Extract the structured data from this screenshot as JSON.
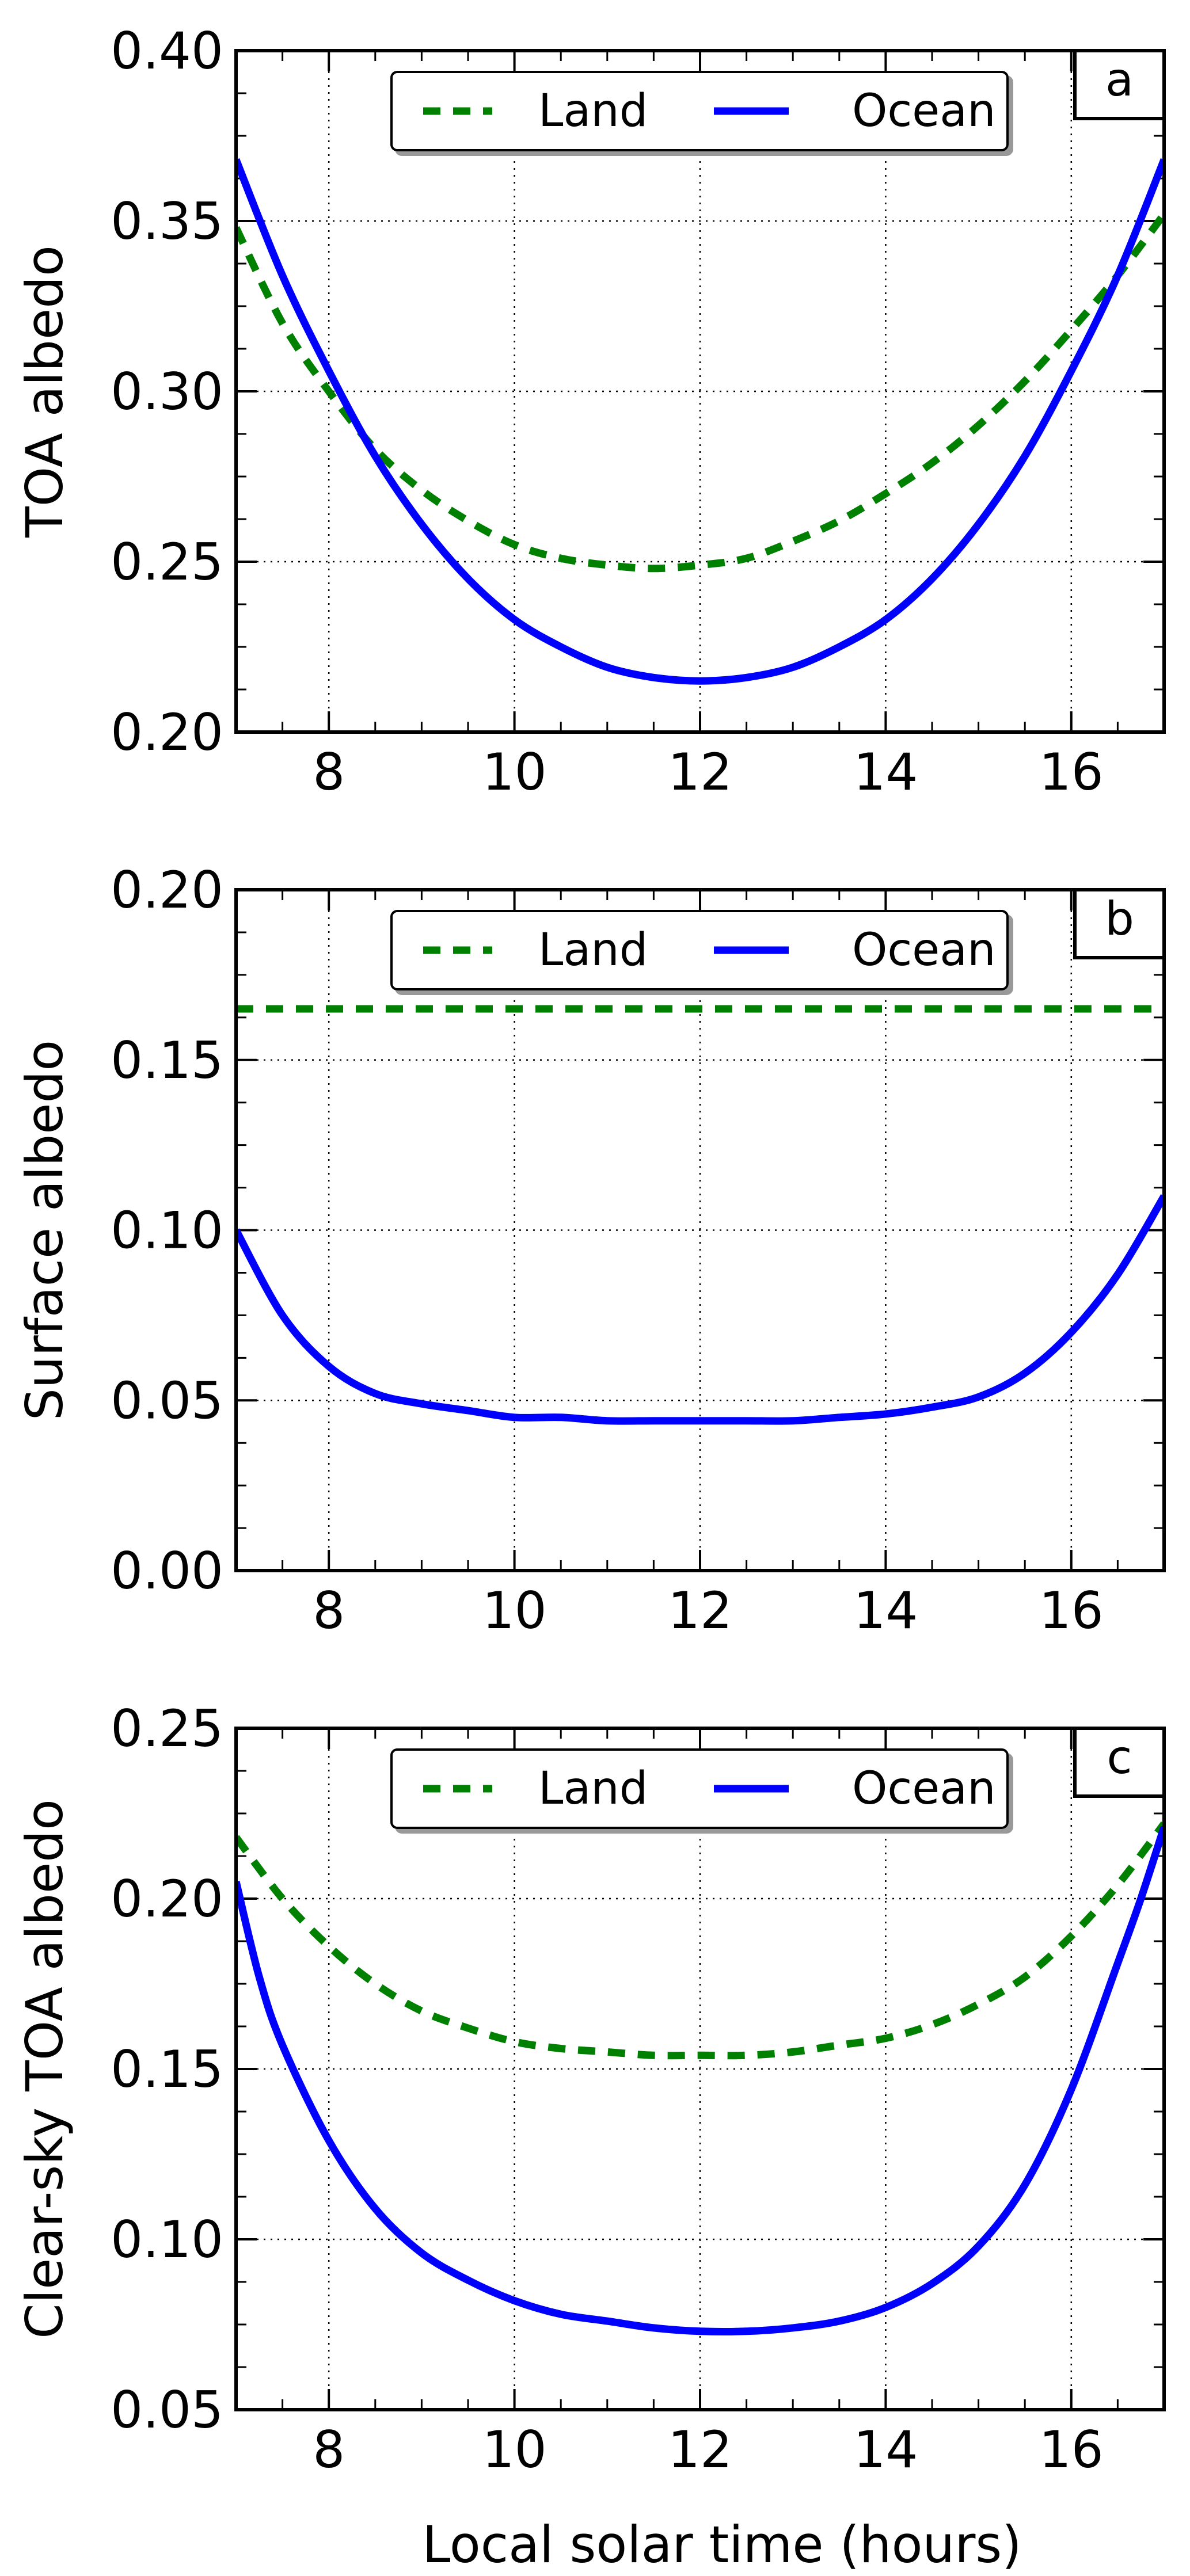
{
  "figure": {
    "xlabel": "Local solar time (hours)"
  },
  "chart_data": [
    {
      "type": "line",
      "panel_label": "a",
      "ylabel": "TOA albedo",
      "xlim": [
        7,
        17
      ],
      "ylim": [
        0.2,
        0.4
      ],
      "xticks": [
        8,
        10,
        12,
        14,
        16
      ],
      "xtick_labels": [
        "8",
        "10",
        "12",
        "14",
        "16"
      ],
      "yticks": [
        0.2,
        0.25,
        0.3,
        0.35,
        0.4
      ],
      "ytick_labels": [
        "0.20",
        "0.25",
        "0.30",
        "0.35",
        "0.40"
      ],
      "grid": true,
      "legend": {
        "placement": "top-center",
        "ncol": 2
      },
      "series": [
        {
          "name": "Land",
          "style": "dashed",
          "color": "#008000",
          "x": [
            7.0,
            7.5,
            8.0,
            8.5,
            9.0,
            9.5,
            10.0,
            10.5,
            11.0,
            11.5,
            12.0,
            12.5,
            13.0,
            13.5,
            14.0,
            14.5,
            15.0,
            15.5,
            16.0,
            16.5,
            17.0
          ],
          "y": [
            0.348,
            0.32,
            0.3,
            0.283,
            0.271,
            0.262,
            0.255,
            0.251,
            0.249,
            0.248,
            0.249,
            0.251,
            0.256,
            0.262,
            0.27,
            0.279,
            0.29,
            0.303,
            0.318,
            0.334,
            0.352
          ]
        },
        {
          "name": "Ocean",
          "style": "solid",
          "color": "#0000ff",
          "x": [
            7.0,
            7.5,
            8.0,
            8.5,
            9.0,
            9.5,
            10.0,
            10.5,
            11.0,
            11.5,
            12.0,
            12.5,
            13.0,
            13.5,
            14.0,
            14.5,
            15.0,
            15.5,
            16.0,
            16.5,
            17.0
          ],
          "y": [
            0.368,
            0.334,
            0.306,
            0.281,
            0.261,
            0.245,
            0.233,
            0.225,
            0.219,
            0.216,
            0.215,
            0.216,
            0.219,
            0.225,
            0.233,
            0.245,
            0.261,
            0.281,
            0.306,
            0.334,
            0.368
          ]
        }
      ]
    },
    {
      "type": "line",
      "panel_label": "b",
      "ylabel": "Surface albedo",
      "xlim": [
        7,
        17
      ],
      "ylim": [
        0.0,
        0.2
      ],
      "xticks": [
        8,
        10,
        12,
        14,
        16
      ],
      "xtick_labels": [
        "8",
        "10",
        "12",
        "14",
        "16"
      ],
      "yticks": [
        0.0,
        0.05,
        0.1,
        0.15,
        0.2
      ],
      "ytick_labels": [
        "0.00",
        "0.05",
        "0.10",
        "0.15",
        "0.20"
      ],
      "grid": true,
      "legend": {
        "placement": "top-center",
        "ncol": 2
      },
      "series": [
        {
          "name": "Land",
          "style": "dashed",
          "color": "#008000",
          "x": [
            7.0,
            8.0,
            9.0,
            10.0,
            11.0,
            12.0,
            13.0,
            14.0,
            15.0,
            16.0,
            17.0
          ],
          "y": [
            0.165,
            0.165,
            0.165,
            0.165,
            0.165,
            0.165,
            0.165,
            0.165,
            0.165,
            0.165,
            0.165
          ]
        },
        {
          "name": "Ocean",
          "style": "solid",
          "color": "#0000ff",
          "x": [
            7.0,
            7.5,
            8.0,
            8.5,
            9.0,
            9.5,
            10.0,
            10.5,
            11.0,
            11.5,
            12.0,
            12.5,
            13.0,
            13.5,
            14.0,
            14.5,
            15.0,
            15.5,
            16.0,
            16.5,
            17.0
          ],
          "y": [
            0.1,
            0.075,
            0.06,
            0.052,
            0.049,
            0.047,
            0.045,
            0.045,
            0.044,
            0.044,
            0.044,
            0.044,
            0.044,
            0.045,
            0.046,
            0.048,
            0.051,
            0.058,
            0.07,
            0.087,
            0.11
          ]
        }
      ]
    },
    {
      "type": "line",
      "panel_label": "c",
      "ylabel": "Clear-sky TOA albedo",
      "xlim": [
        7,
        17
      ],
      "ylim": [
        0.05,
        0.25
      ],
      "xticks": [
        8,
        10,
        12,
        14,
        16
      ],
      "xtick_labels": [
        "8",
        "10",
        "12",
        "14",
        "16"
      ],
      "yticks": [
        0.05,
        0.1,
        0.15,
        0.2,
        0.25
      ],
      "ytick_labels": [
        "0.05",
        "0.10",
        "0.15",
        "0.20",
        "0.25"
      ],
      "grid": true,
      "legend": {
        "placement": "top-center",
        "ncol": 2
      },
      "series": [
        {
          "name": "Land",
          "style": "dashed",
          "color": "#008000",
          "x": [
            7.0,
            7.5,
            8.0,
            8.5,
            9.0,
            9.5,
            10.0,
            10.5,
            11.0,
            11.5,
            12.0,
            12.5,
            13.0,
            13.5,
            14.0,
            14.5,
            15.0,
            15.5,
            16.0,
            16.5,
            17.0
          ],
          "y": [
            0.218,
            0.2,
            0.186,
            0.175,
            0.167,
            0.162,
            0.158,
            0.156,
            0.155,
            0.154,
            0.154,
            0.154,
            0.155,
            0.157,
            0.159,
            0.163,
            0.169,
            0.177,
            0.189,
            0.204,
            0.222
          ]
        },
        {
          "name": "Ocean",
          "style": "solid",
          "color": "#0000ff",
          "x": [
            7.0,
            7.25,
            7.5,
            8.0,
            8.5,
            9.0,
            9.5,
            10.0,
            10.5,
            11.0,
            11.5,
            12.0,
            12.5,
            13.0,
            13.5,
            14.0,
            14.5,
            15.0,
            15.5,
            16.0,
            16.5,
            16.75,
            17.0
          ],
          "y": [
            0.205,
            0.177,
            0.157,
            0.129,
            0.109,
            0.096,
            0.088,
            0.082,
            0.078,
            0.076,
            0.074,
            0.073,
            0.073,
            0.074,
            0.076,
            0.08,
            0.087,
            0.098,
            0.116,
            0.144,
            0.181,
            0.2,
            0.221
          ]
        }
      ]
    }
  ]
}
